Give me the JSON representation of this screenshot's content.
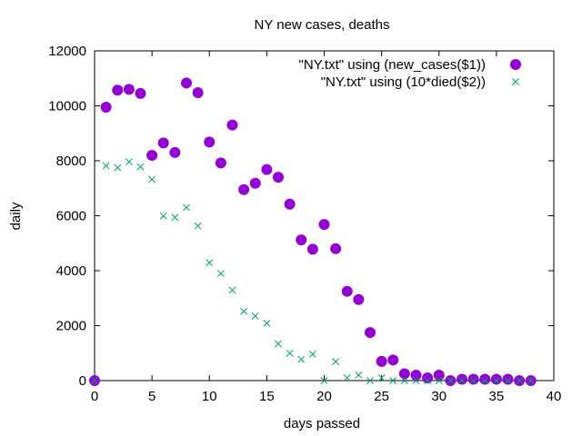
{
  "chart_data": {
    "type": "scatter",
    "title": "NY new cases, deaths",
    "xlabel": "days passed",
    "ylabel": "daily",
    "xlim": [
      0,
      40
    ],
    "ylim": [
      0,
      12000
    ],
    "x_ticks": [
      0,
      5,
      10,
      15,
      20,
      25,
      30,
      35,
      40
    ],
    "y_ticks": [
      0,
      2000,
      4000,
      6000,
      8000,
      10000,
      12000
    ],
    "grid": false,
    "legend_position": "top-right",
    "series": [
      {
        "name": "\"NY.txt\" using (new_cases($1))",
        "marker": "filled-circle",
        "color": "#9400d3",
        "x": [
          0,
          1,
          2,
          3,
          4,
          5,
          6,
          7,
          8,
          9,
          10,
          11,
          12,
          13,
          14,
          15,
          16,
          17,
          18,
          19,
          20,
          21,
          22,
          23,
          24,
          25,
          26,
          27,
          28,
          29,
          30,
          31,
          32,
          33,
          34,
          35,
          36,
          37,
          38
        ],
        "y": [
          0,
          9950,
          10570,
          10600,
          10450,
          8200,
          8650,
          8300,
          10830,
          10480,
          8680,
          7920,
          9300,
          6950,
          7180,
          7680,
          7400,
          6420,
          5120,
          4780,
          5680,
          4800,
          3250,
          2950,
          1750,
          700,
          750,
          250,
          200,
          100,
          200,
          0,
          50,
          50,
          50,
          50,
          50,
          0,
          0
        ]
      },
      {
        "name": "\"NY.txt\" using (10*died($2))",
        "marker": "x-cross",
        "color": "#009e73",
        "x": [
          0,
          1,
          2,
          3,
          4,
          5,
          6,
          7,
          8,
          9,
          10,
          11,
          12,
          13,
          14,
          15,
          16,
          17,
          18,
          19,
          20,
          21,
          22,
          23,
          24,
          25,
          26,
          27,
          28,
          29,
          30,
          31,
          32,
          33,
          34,
          35,
          36,
          37,
          38
        ],
        "y": [
          0,
          7820,
          7750,
          7960,
          7780,
          7320,
          5990,
          5940,
          6300,
          5630,
          4290,
          3900,
          3290,
          2520,
          2350,
          2090,
          1340,
          990,
          770,
          960,
          0,
          690,
          100,
          200,
          0,
          100,
          0,
          0,
          0,
          0,
          0,
          0,
          0,
          0,
          0,
          0,
          0,
          0,
          0
        ]
      }
    ]
  }
}
